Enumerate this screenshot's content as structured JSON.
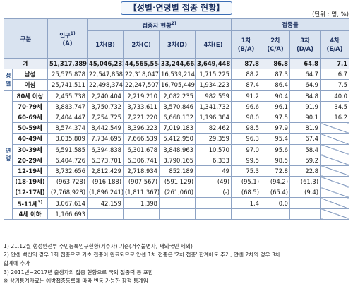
{
  "title": "【성별·연령별 접종 현황】",
  "unit": "(단위 : 명, %)",
  "header": {
    "category": "구분",
    "population": "인구",
    "population_sup": "1)",
    "population_code": "(A)",
    "status_group": "접종자 현황",
    "status_sup": "2)",
    "rate_group": "접종률",
    "dose1": "1차(B)",
    "dose2": "2차(C)",
    "dose3": "3차(D)",
    "dose4": "4차(E)",
    "rate1_top": "1차",
    "rate1_bot": "(B/A)",
    "rate2_top": "2차",
    "rate2_bot": "(C/A)",
    "rate3_top": "3차",
    "rate3_bot": "(D/A)",
    "rate4_top": "4차",
    "rate4_bot": "(E/A)"
  },
  "side_labels": {
    "gender": "성별",
    "age": "연령"
  },
  "rows": [
    {
      "label": "계",
      "pop": "51,317,389",
      "d1": "45,046,232",
      "d2": "44,565,554",
      "d3": "33,244,663",
      "d4": "3,649,448",
      "r1": "87.8",
      "r2": "86.8",
      "r3": "64.8",
      "r4": "7.1"
    },
    {
      "label": "남성",
      "pop": "25,575,878",
      "d1": "22,547,858",
      "d2": "22,318,047",
      "d3": "16,539,214",
      "d4": "1,715,225",
      "r1": "88.2",
      "r2": "87.3",
      "r3": "64.7",
      "r4": "6.7"
    },
    {
      "label": "여성",
      "pop": "25,741,511",
      "d1": "22,498,374",
      "d2": "22,247,507",
      "d3": "16,705,449",
      "d4": "1,934,223",
      "r1": "87.4",
      "r2": "86.4",
      "r3": "64.9",
      "r4": "7.5"
    },
    {
      "label": "80세 이상",
      "pop": "2,455,738",
      "d1": "2,240,404",
      "d2": "2,219,210",
      "d3": "2,082,235",
      "d4": "982,559",
      "r1": "91.2",
      "r2": "90.4",
      "r3": "84.8",
      "r4": "40.0"
    },
    {
      "label": "70-79세",
      "pop": "3,883,747",
      "d1": "3,750,732",
      "d2": "3,733,611",
      "d3": "3,570,846",
      "d4": "1,341,732",
      "r1": "96.6",
      "r2": "96.1",
      "r3": "91.9",
      "r4": "34.5"
    },
    {
      "label": "60-69세",
      "pop": "7,404,447",
      "d1": "7,254,725",
      "d2": "7,221,220",
      "d3": "6,668,132",
      "d4": "1,196,384",
      "r1": "98.0",
      "r2": "97.5",
      "r3": "90.1",
      "r4": "16.2"
    },
    {
      "label": "50-59세",
      "pop": "8,574,374",
      "d1": "8,442,549",
      "d2": "8,396,223",
      "d3": "7,019,183",
      "d4": "82,462",
      "r1": "98.5",
      "r2": "97.9",
      "r3": "81.9",
      "r4": ""
    },
    {
      "label": "40-49세",
      "pop": "8,035,809",
      "d1": "7,734,695",
      "d2": "7,666,539",
      "d3": "5,412,950",
      "d4": "29,359",
      "r1": "96.3",
      "r2": "95.4",
      "r3": "67.4",
      "r4": ""
    },
    {
      "label": "30-39세",
      "pop": "6,591,585",
      "d1": "6,394,838",
      "d2": "6,301,678",
      "d3": "3,848,963",
      "d4": "10,570",
      "r1": "97.0",
      "r2": "95.6",
      "r3": "58.4",
      "r4": ""
    },
    {
      "label": "20-29세",
      "pop": "6,404,726",
      "d1": "6,373,701",
      "d2": "6,306,741",
      "d3": "3,790,165",
      "d4": "6,333",
      "r1": "99.5",
      "r2": "98.5",
      "r3": "59.2",
      "r4": ""
    },
    {
      "label": "12-19세",
      "pop": "3,732,656",
      "d1": "2,812,429",
      "d2": "2,718,934",
      "d3": "852,189",
      "d4": "49",
      "r1": "75.3",
      "r2": "72.8",
      "r3": "22.8",
      "r4": ""
    },
    {
      "label": "(18-19세)",
      "pop": "(963,728)",
      "d1": "(916,188)",
      "d2": "(907,567)",
      "d3": "(591,129)",
      "d4": "(49)",
      "r1": "(95.1)",
      "r2": "(94.2)",
      "r3": "(61.3)",
      "r4": ""
    },
    {
      "label": "(12-17세)",
      "pop": "(2,768,928)",
      "d1": "(1,896,241)",
      "d2": "(1,811,367)",
      "d3": "(261,060)",
      "d4": "(-)",
      "r1": "(68.5)",
      "r2": "(65.4)",
      "r3": "(9.4)",
      "r4": ""
    },
    {
      "label": "5-11세",
      "label_sup": "3)",
      "pop": "3,067,614",
      "d1": "42,159",
      "d2": "1,398",
      "d3": "",
      "d4": "",
      "r1": "1.4",
      "r2": "0.0",
      "r3": "",
      "r4": ""
    },
    {
      "label": "4세 이하",
      "pop": "1,166,693",
      "d1": "",
      "d2": "",
      "d3": "",
      "d4": "",
      "r1": "",
      "r2": "",
      "r3": "",
      "r4": ""
    }
  ],
  "notes": [
    "1) 21.12월 행정안전부 주민등록인구현황(거주자) 기준(거주불명자, 재외국민 제외)",
    "2) 얀센 백신의 경우 1회 접종으로 기초 접종이 완료되므로 얀센 1차 접종은 '2차 접종' 합계에도 추가, 얀센 2차의 경우 3차",
    "   합계에 추가",
    "3) 2011년~2017년 출생자의 접종 현황으로 국외 접종력 등 포함",
    "※ 상기통계자료는 예방접종등록에 따라 변동 가능한 잠정 통계임"
  ]
}
